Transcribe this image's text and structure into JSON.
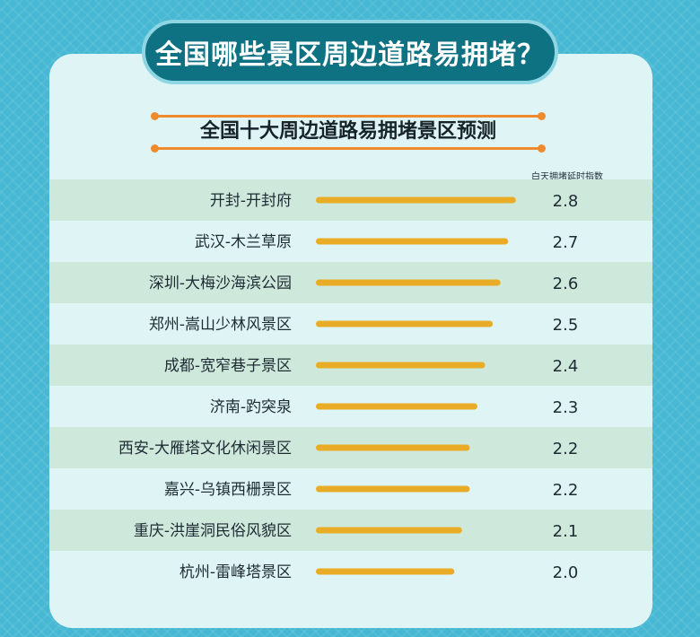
{
  "header": {
    "title": "全国哪些景区周边道路易拥堵？",
    "subtitle": "全国十大周边道路易拥堵景区预测",
    "index_label": "白天拥堵延时指数"
  },
  "colors": {
    "background": "#46b8d3",
    "panel": "#dff4f4",
    "title_bg": "#0e7282",
    "accent": "#ef8a2d",
    "bar": "#e9ac27",
    "row_stripe": "#cfe8dc"
  },
  "chart_data": {
    "type": "bar",
    "orientation": "horizontal",
    "title": "全国十大周边道路易拥堵景区预测",
    "value_label": "白天拥堵延时指数",
    "categories": [
      "开封-开封府",
      "武汉-木兰草原",
      "深圳-大梅沙海滨公园",
      "郑州-嵩山少林风景区",
      "成都-宽窄巷子景区",
      "济南-趵突泉",
      "西安-大雁塔文化休闲景区",
      "嘉兴-乌镇西栅景区",
      "重庆-洪崖洞民俗风貌区",
      "杭州-雷峰塔景区"
    ],
    "values": [
      2.8,
      2.7,
      2.6,
      2.5,
      2.4,
      2.3,
      2.2,
      2.2,
      2.1,
      2.0
    ],
    "value_labels": [
      "2.8",
      "2.7",
      "2.6",
      "2.5",
      "2.4",
      "2.3",
      "2.2",
      "2.2",
      "2.1",
      "2.0"
    ],
    "grid": false,
    "legend": "none"
  }
}
